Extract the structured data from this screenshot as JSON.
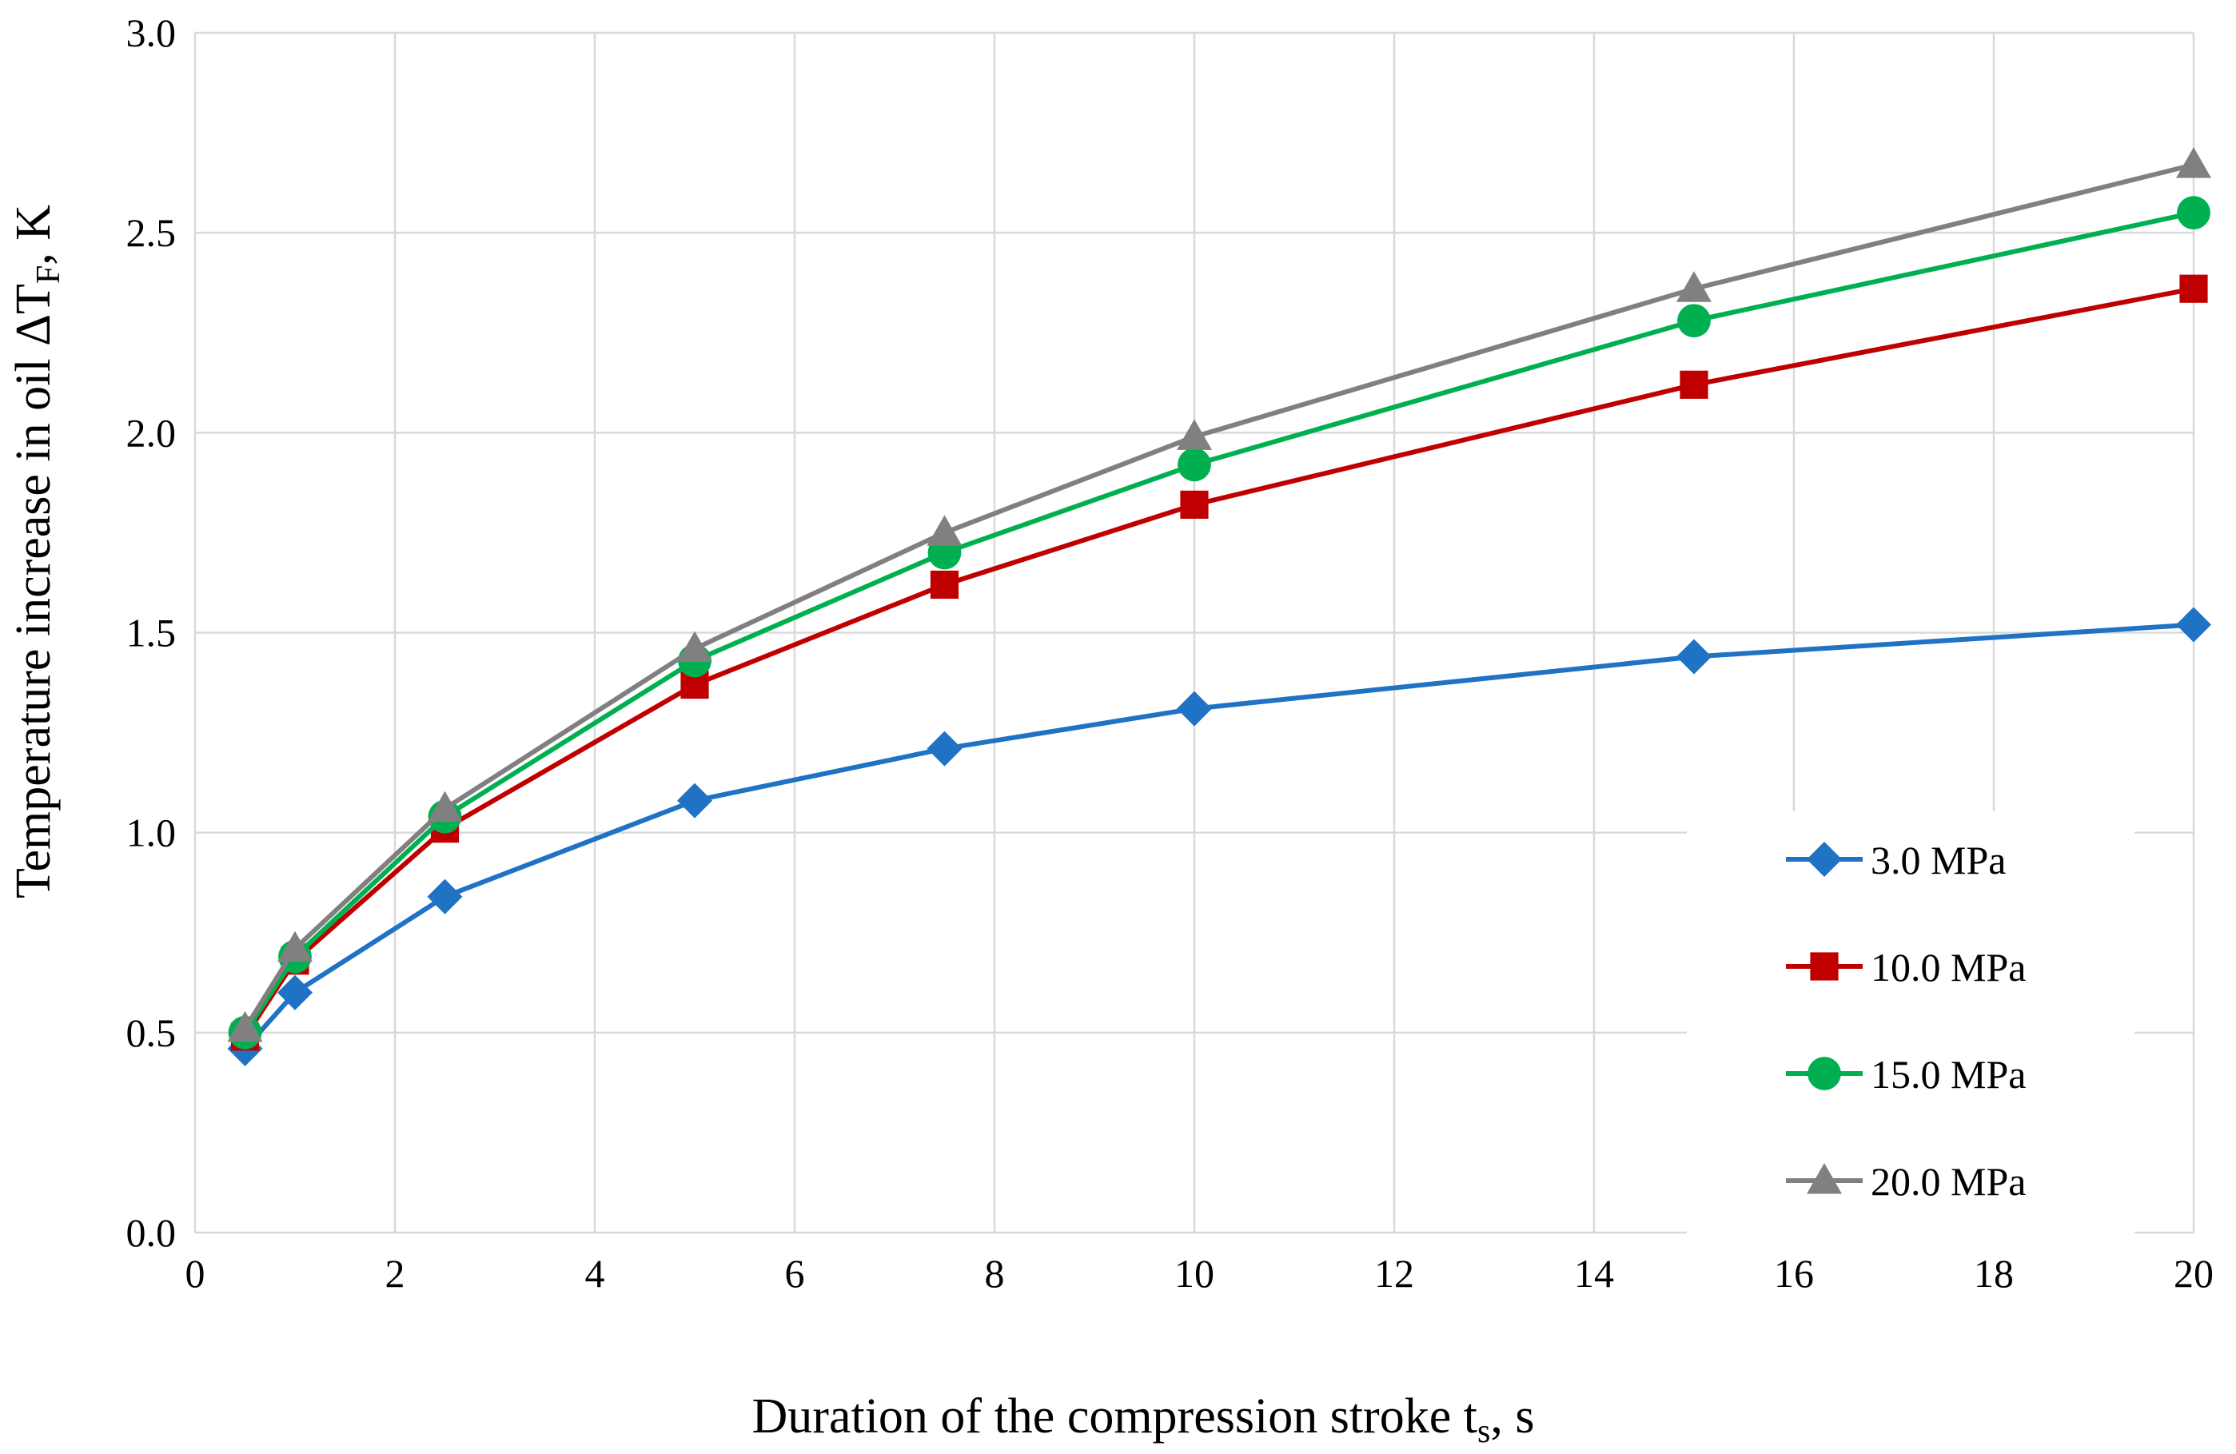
{
  "chart_data": {
    "type": "line",
    "title": "",
    "xlabel": {
      "main": "Duration of the compression stroke t",
      "sub": "s",
      "suffix": ", s"
    },
    "ylabel": {
      "main": "Temperature increase in oil ΔT",
      "sub": "F",
      "suffix": ", K"
    },
    "xlim": [
      0,
      20
    ],
    "ylim": [
      0,
      3.0
    ],
    "x_ticks": [
      0,
      2,
      4,
      6,
      8,
      10,
      12,
      14,
      16,
      18,
      20
    ],
    "y_ticks": [
      0,
      0.5,
      1.0,
      1.5,
      2.0,
      2.5,
      3.0
    ],
    "x_tick_labels": [
      "0",
      "2",
      "4",
      "6",
      "8",
      "10",
      "12",
      "14",
      "16",
      "18",
      "20"
    ],
    "y_tick_labels": [
      "0.0",
      "0.5",
      "1.0",
      "1.5",
      "2.0",
      "2.5",
      "3.0"
    ],
    "grid": true,
    "legend_position": "right",
    "x": [
      0.5,
      1,
      2.5,
      5,
      7.5,
      10,
      15,
      20
    ],
    "series": [
      {
        "name": "3.0 MPa",
        "color": "#1f72c4",
        "marker": "diamond",
        "values": [
          0.46,
          0.6,
          0.84,
          1.08,
          1.21,
          1.31,
          1.44,
          1.52
        ]
      },
      {
        "name": "10.0 MPa",
        "color": "#c00000",
        "marker": "square",
        "values": [
          0.49,
          0.68,
          1.01,
          1.37,
          1.62,
          1.82,
          2.12,
          2.36
        ]
      },
      {
        "name": "15.0 MPa",
        "color": "#00b050",
        "marker": "circle",
        "values": [
          0.5,
          0.69,
          1.04,
          1.43,
          1.7,
          1.92,
          2.28,
          2.55
        ]
      },
      {
        "name": "20.0 MPa",
        "color": "#808080",
        "marker": "triangle",
        "values": [
          0.51,
          0.71,
          1.06,
          1.46,
          1.75,
          1.99,
          2.36,
          2.67
        ]
      }
    ]
  }
}
